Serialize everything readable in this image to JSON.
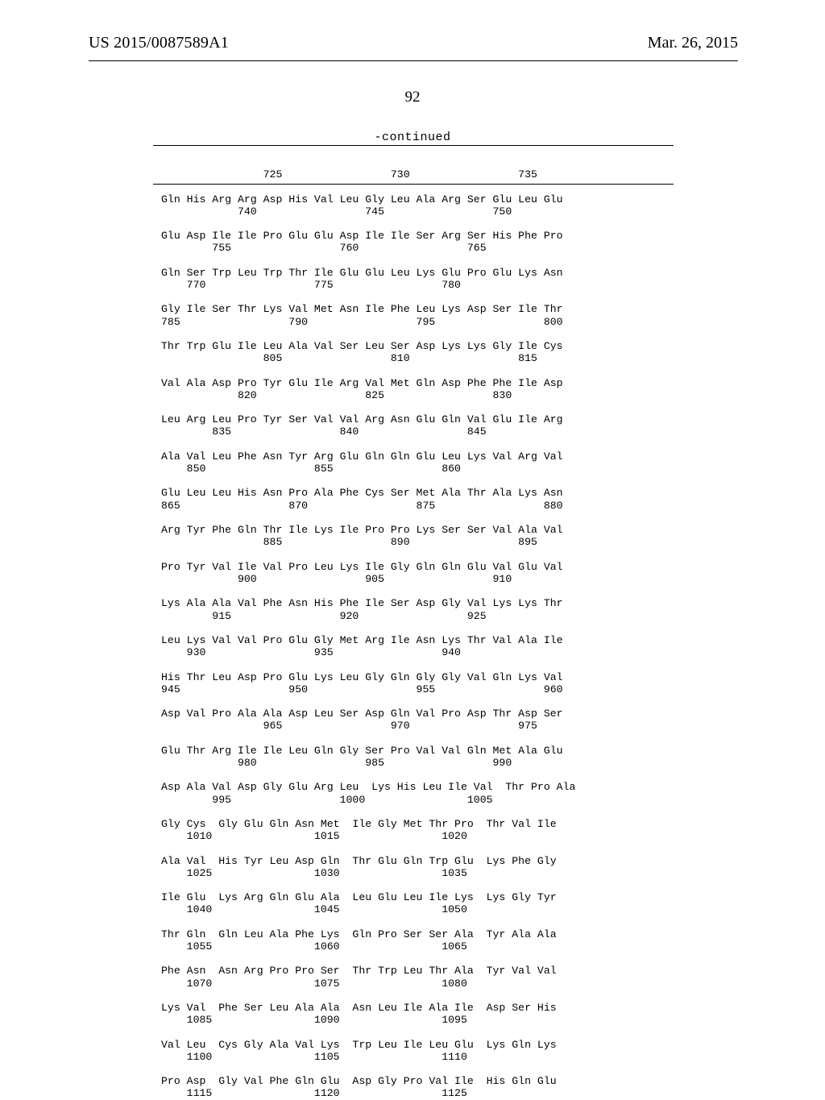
{
  "header": {
    "left": "US 2015/0087589A1",
    "right": "Mar. 26, 2015"
  },
  "page_number": "92",
  "continued_label": "-continued",
  "sequence_lines": [
    "                725                 730                 735",
    "",
    "Gln His Arg Arg Asp His Val Leu Gly Leu Ala Arg Ser Glu Leu Glu",
    "            740                 745                 750",
    "",
    "Glu Asp Ile Ile Pro Glu Glu Asp Ile Ile Ser Arg Ser His Phe Pro",
    "        755                 760                 765",
    "",
    "Gln Ser Trp Leu Trp Thr Ile Glu Glu Leu Lys Glu Pro Glu Lys Asn",
    "    770                 775                 780",
    "",
    "Gly Ile Ser Thr Lys Val Met Asn Ile Phe Leu Lys Asp Ser Ile Thr",
    "785                 790                 795                 800",
    "",
    "Thr Trp Glu Ile Leu Ala Val Ser Leu Ser Asp Lys Lys Gly Ile Cys",
    "                805                 810                 815",
    "",
    "Val Ala Asp Pro Tyr Glu Ile Arg Val Met Gln Asp Phe Phe Ile Asp",
    "            820                 825                 830",
    "",
    "Leu Arg Leu Pro Tyr Ser Val Val Arg Asn Glu Gln Val Glu Ile Arg",
    "        835                 840                 845",
    "",
    "Ala Val Leu Phe Asn Tyr Arg Glu Gln Gln Glu Leu Lys Val Arg Val",
    "    850                 855                 860",
    "",
    "Glu Leu Leu His Asn Pro Ala Phe Cys Ser Met Ala Thr Ala Lys Asn",
    "865                 870                 875                 880",
    "",
    "Arg Tyr Phe Gln Thr Ile Lys Ile Pro Pro Lys Ser Ser Val Ala Val",
    "                885                 890                 895",
    "",
    "Pro Tyr Val Ile Val Pro Leu Lys Ile Gly Gln Gln Glu Val Glu Val",
    "            900                 905                 910",
    "",
    "Lys Ala Ala Val Phe Asn His Phe Ile Ser Asp Gly Val Lys Lys Thr",
    "        915                 920                 925",
    "",
    "Leu Lys Val Val Pro Glu Gly Met Arg Ile Asn Lys Thr Val Ala Ile",
    "    930                 935                 940",
    "",
    "His Thr Leu Asp Pro Glu Lys Leu Gly Gln Gly Gly Val Gln Lys Val",
    "945                 950                 955                 960",
    "",
    "Asp Val Pro Ala Ala Asp Leu Ser Asp Gln Val Pro Asp Thr Asp Ser",
    "                965                 970                 975",
    "",
    "Glu Thr Arg Ile Ile Leu Gln Gly Ser Pro Val Val Gln Met Ala Glu",
    "            980                 985                 990",
    "",
    "Asp Ala Val Asp Gly Glu Arg Leu  Lys His Leu Ile Val  Thr Pro Ala",
    "        995                 1000                1005",
    "",
    "Gly Cys  Gly Glu Gln Asn Met  Ile Gly Met Thr Pro  Thr Val Ile",
    "    1010                1015                1020",
    "",
    "Ala Val  His Tyr Leu Asp Gln  Thr Glu Gln Trp Glu  Lys Phe Gly",
    "    1025                1030                1035",
    "",
    "Ile Glu  Lys Arg Gln Glu Ala  Leu Glu Leu Ile Lys  Lys Gly Tyr",
    "    1040                1045                1050",
    "",
    "Thr Gln  Gln Leu Ala Phe Lys  Gln Pro Ser Ser Ala  Tyr Ala Ala",
    "    1055                1060                1065",
    "",
    "Phe Asn  Asn Arg Pro Pro Ser  Thr Trp Leu Thr Ala  Tyr Val Val",
    "    1070                1075                1080",
    "",
    "Lys Val  Phe Ser Leu Ala Ala  Asn Leu Ile Ala Ile  Asp Ser His",
    "    1085                1090                1095",
    "",
    "Val Leu  Cys Gly Ala Val Lys  Trp Leu Ile Leu Glu  Lys Gln Lys",
    "    1100                1105                1110",
    "",
    "Pro Asp  Gly Val Phe Gln Glu  Asp Gly Pro Val Ile  His Gln Glu",
    "    1115                1120                1125"
  ]
}
